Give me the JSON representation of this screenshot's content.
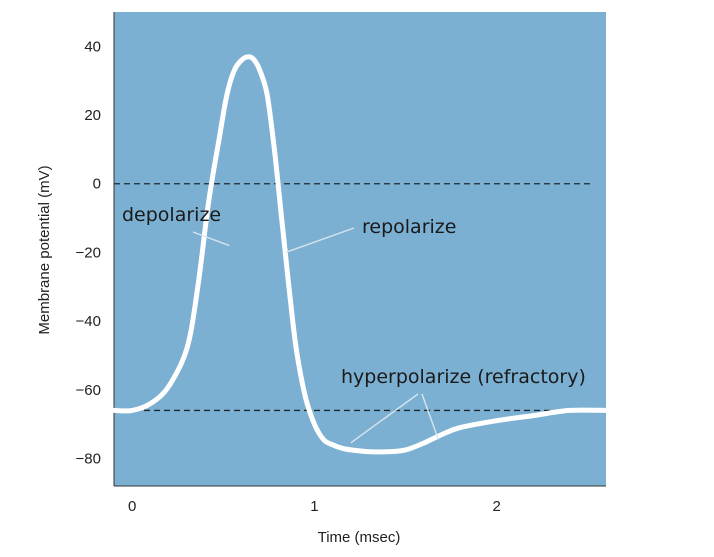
{
  "chart_data": {
    "type": "line",
    "title": "",
    "xlabel": "Time (msec)",
    "ylabel": "Membrane potential (mV)",
    "xlim": [
      -0.1,
      2.6
    ],
    "ylim": [
      -88,
      50
    ],
    "x_ticks": [
      0,
      1,
      2
    ],
    "x_tick_labels": [
      "0",
      "1",
      "2"
    ],
    "y_ticks": [
      40,
      20,
      0,
      -20,
      -40,
      -60,
      -80
    ],
    "y_tick_labels": [
      "40",
      "20",
      "0",
      "−20",
      "−40",
      "−60",
      "−80"
    ],
    "grid": false,
    "reference_lines": [
      {
        "y": 0,
        "style": "dashed"
      },
      {
        "y": -66,
        "style": "dashed"
      }
    ],
    "series": [
      {
        "x": [
          -0.1,
          0.0,
          0.1,
          0.2,
          0.3,
          0.36,
          0.42,
          0.48,
          0.52,
          0.56,
          0.6,
          0.64,
          0.67,
          0.7,
          0.74,
          0.78,
          0.82,
          0.86,
          0.9,
          0.95,
          1.0,
          1.05,
          1.1,
          1.15,
          1.2,
          1.3,
          1.4,
          1.5,
          1.6,
          1.7,
          1.8,
          2.0,
          2.2,
          2.4,
          2.6
        ],
        "y": [
          -66,
          -66,
          -64,
          -59,
          -48,
          -30,
          -5,
          14,
          26,
          33,
          36,
          37,
          36,
          33,
          26,
          10,
          -10,
          -30,
          -48,
          -62,
          -70,
          -74.5,
          -76,
          -77,
          -77.5,
          -78,
          -78,
          -77.5,
          -75.5,
          -73,
          -71,
          -69,
          -67.5,
          -66,
          -66
        ]
      }
    ],
    "colors": {
      "plot_background": "#7bb0d2",
      "trace": "#ffffff",
      "reference_line": "#1f2a33",
      "pointer": "#d8e4ec"
    },
    "annotations": [
      {
        "text": "depolarize",
        "points_to": {
          "x": 0.5,
          "y": -18
        }
      },
      {
        "text": "repolarize",
        "points_to": {
          "x": 0.82,
          "y": -20
        }
      },
      {
        "text": "hyperpolarize (refractory)",
        "points_to": [
          {
            "x": 1.2,
            "y": -76
          },
          {
            "x": 1.68,
            "y": -75
          }
        ]
      }
    ]
  }
}
